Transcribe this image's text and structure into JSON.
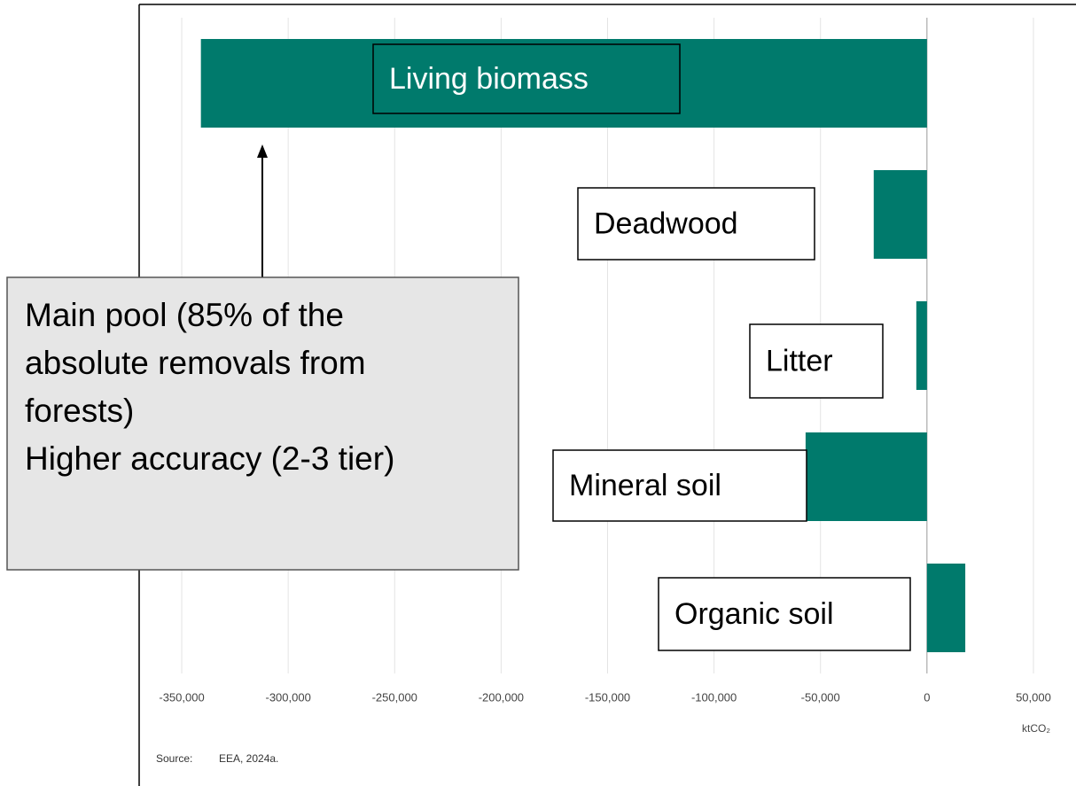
{
  "chart_data": {
    "type": "bar",
    "orientation": "horizontal",
    "categories": [
      "Living biomass",
      "Deadwood",
      "Litter",
      "Mineral soil",
      "Organic soil"
    ],
    "values": [
      -341000,
      -25000,
      -5000,
      -57000,
      18000
    ],
    "color": "#007a6c",
    "xlim": [
      -370000,
      70000
    ],
    "xticks": [
      {
        "value": -350000,
        "label": "-350,000"
      },
      {
        "value": -300000,
        "label": "-300,000"
      },
      {
        "value": -250000,
        "label": "-250,000"
      },
      {
        "value": -200000,
        "label": "-200,000"
      },
      {
        "value": -150000,
        "label": "-150,000"
      },
      {
        "value": -100000,
        "label": "-100,000"
      },
      {
        "value": -50000,
        "label": "-50,000"
      },
      0,
      {
        "value": 50000,
        "label": "50,000"
      }
    ],
    "grid": true,
    "x_unit": "ktCO₂",
    "source_label": "Source:",
    "source": "EEA, 2024a.",
    "annotation": [
      "Main pool (85% of the",
      "absolute removals from",
      "forests)",
      "Higher accuracy (2-3 tier)"
    ]
  }
}
